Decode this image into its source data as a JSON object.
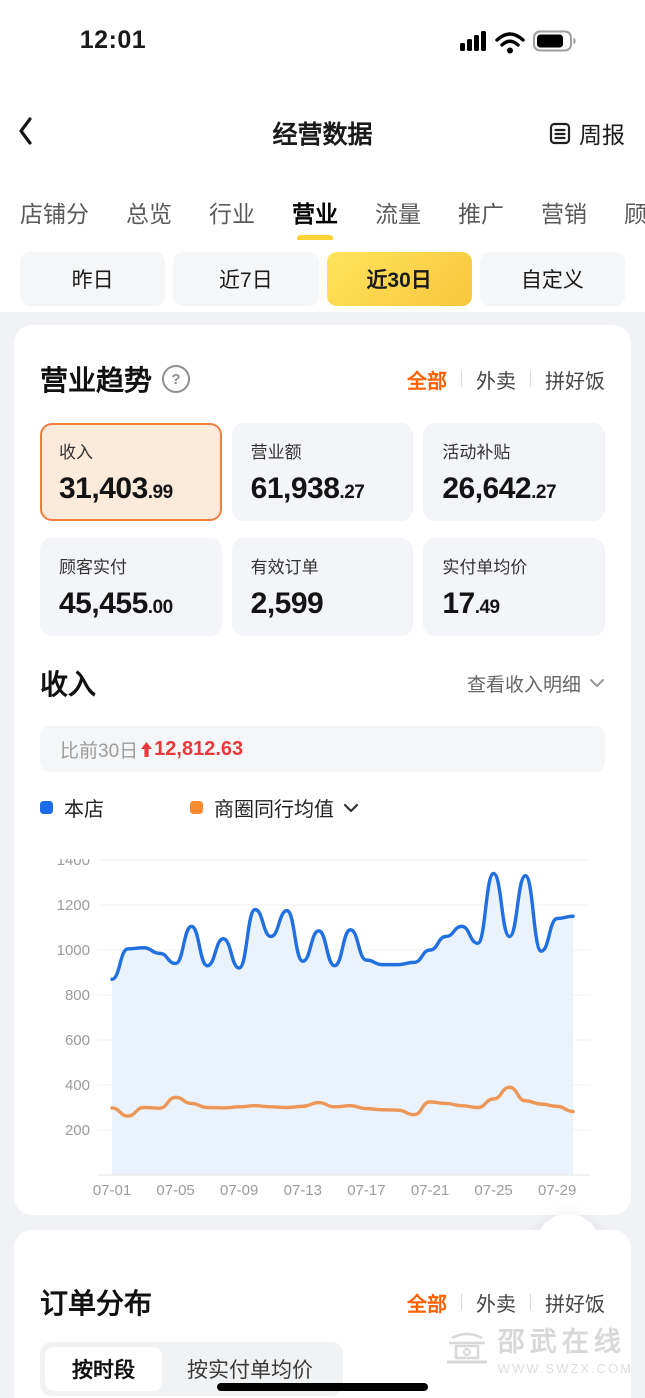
{
  "status_bar": {
    "time": "12:01"
  },
  "nav": {
    "title": "经营数据",
    "weekly_report_label": "周报"
  },
  "tabs": {
    "items": [
      {
        "label": "店铺分",
        "active": false
      },
      {
        "label": "总览",
        "active": false
      },
      {
        "label": "行业",
        "active": false
      },
      {
        "label": "营业",
        "active": true
      },
      {
        "label": "流量",
        "active": false
      },
      {
        "label": "推广",
        "active": false
      },
      {
        "label": "营销",
        "active": false
      },
      {
        "label": "顾客",
        "active": false
      }
    ]
  },
  "date_range": {
    "options": [
      {
        "label": "昨日",
        "active": false
      },
      {
        "label": "近7日",
        "active": false
      },
      {
        "label": "近30日",
        "active": true
      },
      {
        "label": "自定义",
        "active": false
      }
    ]
  },
  "trend_card": {
    "title": "营业趋势",
    "filters": {
      "items": [
        "全部",
        "外卖",
        "拼好饭"
      ],
      "active_index": 0
    },
    "metrics": [
      {
        "label": "收入",
        "value_int": "31,403",
        "value_dec": ".99",
        "selected": true
      },
      {
        "label": "营业额",
        "value_int": "61,938",
        "value_dec": ".27",
        "selected": false
      },
      {
        "label": "活动补贴",
        "value_int": "26,642",
        "value_dec": ".27",
        "selected": false
      },
      {
        "label": "顾客实付",
        "value_int": "45,455",
        "value_dec": ".00",
        "selected": false
      },
      {
        "label": "有效订单",
        "value_int": "2,599",
        "value_dec": "",
        "selected": false
      },
      {
        "label": "实付单均价",
        "value_int": "17",
        "value_dec": ".49",
        "selected": false
      }
    ],
    "income_section": {
      "title": "收入",
      "detail_link": "查看收入明细",
      "compare_label": "比前30日",
      "compare_value": "12,812.63",
      "compare_direction": "up"
    },
    "legend": [
      {
        "label": "本店",
        "color": "#1A6DE6"
      },
      {
        "label": "商圈同行均值",
        "color": "#F68B32"
      }
    ]
  },
  "chart_data": {
    "type": "line",
    "x": [
      "07-01",
      "07-02",
      "07-03",
      "07-04",
      "07-05",
      "07-06",
      "07-07",
      "07-08",
      "07-09",
      "07-10",
      "07-11",
      "07-12",
      "07-13",
      "07-14",
      "07-15",
      "07-16",
      "07-17",
      "07-18",
      "07-19",
      "07-20",
      "07-21",
      "07-22",
      "07-23",
      "07-24",
      "07-25",
      "07-26",
      "07-27",
      "07-28",
      "07-29",
      "07-30"
    ],
    "x_tick_labels": [
      "07-01",
      "07-05",
      "07-09",
      "07-13",
      "07-17",
      "07-21",
      "07-25",
      "07-29"
    ],
    "x_tick_days": [
      1,
      5,
      9,
      13,
      17,
      21,
      25,
      29
    ],
    "ylim": [
      0,
      1400
    ],
    "yticks": [
      200,
      400,
      600,
      800,
      1000,
      1200,
      1400
    ],
    "grid": true,
    "series": [
      {
        "name": "本店",
        "color": "#2170E0",
        "fill": "#E8F1FC",
        "values": [
          870,
          1005,
          1010,
          985,
          940,
          1105,
          930,
          1050,
          920,
          1180,
          1060,
          1175,
          950,
          1085,
          930,
          1090,
          955,
          935,
          935,
          945,
          1000,
          1060,
          1105,
          1030,
          1340,
          1060,
          1330,
          995,
          1140,
          1150
        ]
      },
      {
        "name": "商圈同行均值",
        "color": "#EC9757",
        "fill": null,
        "values": [
          298,
          262,
          300,
          297,
          345,
          318,
          300,
          298,
          303,
          308,
          303,
          300,
          305,
          322,
          303,
          308,
          295,
          290,
          288,
          268,
          325,
          318,
          308,
          300,
          338,
          390,
          330,
          315,
          305,
          282
        ]
      }
    ]
  },
  "orders_card": {
    "title": "订单分布",
    "filters": {
      "items": [
        "全部",
        "外卖",
        "拼好饭"
      ],
      "active_index": 0
    },
    "segments": [
      {
        "label": "按时段",
        "active": true
      },
      {
        "label": "按实付单均价",
        "active": false
      }
    ]
  },
  "watermark": {
    "line1": "邵武在线",
    "line2": "WWW.SWZX.COM"
  },
  "colors": {
    "accent_orange": "#FF6000",
    "highlight_border": "#EF7E3D",
    "highlight_bg": "#FCEBDB",
    "yellow": "#FFD233",
    "red_up": "#E8393C",
    "line_blue": "#2170E0",
    "line_orange": "#EC9757",
    "area_blue": "#E8F1FC",
    "card_gray": "#F4F5F8",
    "page_gray": "#F1F2F5"
  }
}
